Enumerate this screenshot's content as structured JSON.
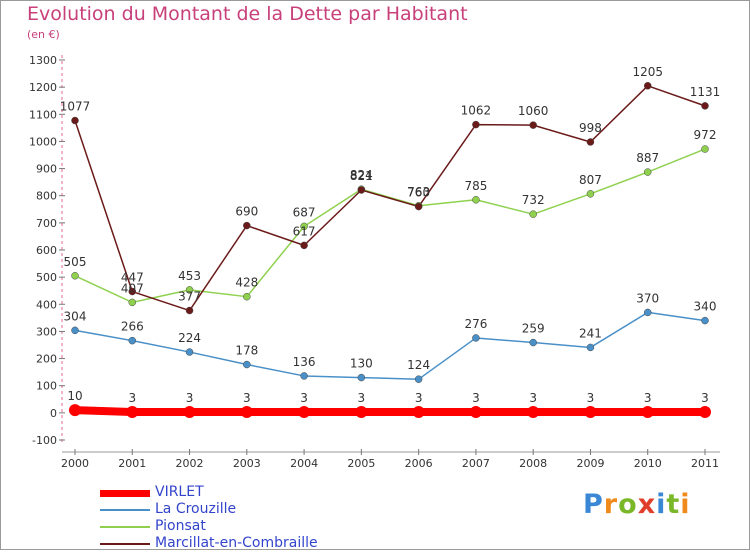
{
  "header": {
    "title": "Evolution du Montant de la Dette par Habitant",
    "subtitle": "(en €)"
  },
  "logo": {
    "text": "Proxiti",
    "letter_colors": [
      "#3a87d6",
      "#f08a1c",
      "#7ab82a",
      "#e03d2a",
      "#3a87d6",
      "#7ab82a",
      "#f08a1c"
    ]
  },
  "chart_data": {
    "type": "line",
    "title": "Evolution du Montant de la Dette par Habitant",
    "subtitle": "(en €)",
    "x": [
      "2000",
      "2001",
      "2002",
      "2003",
      "2004",
      "2005",
      "2006",
      "2007",
      "2008",
      "2009",
      "2010",
      "2011"
    ],
    "ylim": [
      -100,
      1300
    ],
    "yticks": [
      -100,
      0,
      100,
      200,
      300,
      400,
      500,
      600,
      700,
      800,
      900,
      1000,
      1100,
      1200,
      1300
    ],
    "grid": false,
    "legend_position": "bottom-left",
    "series": [
      {
        "name": "VIRLET",
        "color": "#ff0000",
        "values": [
          10,
          3,
          3,
          3,
          3,
          3,
          3,
          3,
          3,
          3,
          3,
          3
        ]
      },
      {
        "name": "La Crouzille",
        "color": "#4a90c8",
        "values": [
          304,
          266,
          224,
          178,
          136,
          130,
          124,
          276,
          259,
          241,
          370,
          340
        ]
      },
      {
        "name": "Pionsat",
        "color": "#8fd14f",
        "values": [
          505,
          407,
          453,
          428,
          687,
          824,
          763,
          785,
          732,
          807,
          887,
          972
        ]
      },
      {
        "name": "Marcillat-en-Combraille",
        "color": "#6b1a1a",
        "values": [
          1077,
          447,
          377,
          690,
          617,
          821,
          760,
          1062,
          1060,
          998,
          1205,
          1131
        ]
      }
    ]
  }
}
